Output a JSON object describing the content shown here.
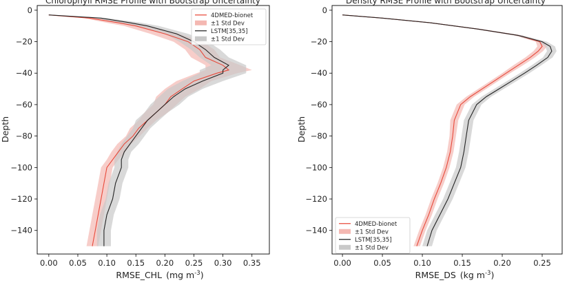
{
  "chart_data": [
    {
      "type": "line",
      "title": "Chlorophyll RMSE Profile with Bootstrap Uncertainty",
      "xlabel": "RMSE_CHL",
      "xlabel_unit_base": "(mg m",
      "xlabel_unit_exp": "-3",
      "xlabel_unit_end": ")",
      "ylabel": "Depth",
      "xlim": [
        -0.02,
        0.38
      ],
      "ylim": [
        -155,
        3
      ],
      "xticks": [
        0.0,
        0.05,
        0.1,
        0.15,
        0.2,
        0.25,
        0.3,
        0.35
      ],
      "xtick_labels": [
        "0.00",
        "0.05",
        "0.10",
        "0.15",
        "0.20",
        "0.25",
        "0.30",
        "0.35"
      ],
      "yticks": [
        0,
        -20,
        -40,
        -60,
        -80,
        -100,
        -120,
        -140
      ],
      "ytick_labels": [
        "0",
        "−20",
        "−40",
        "−60",
        "−80",
        "−100",
        "−120",
        "−140"
      ],
      "legend_position": "top-right",
      "legend": [
        "4DMED-bionet",
        "±1 Std Dev",
        "LSTM[35,35]",
        "±1 Std Dev"
      ],
      "series": [
        {
          "name": "4DMED-bionet",
          "color": "#e8493a",
          "band_color": "#f4b8b2",
          "depth": [
            -3,
            -5,
            -8,
            -10,
            -15,
            -20,
            -25,
            -30,
            -35,
            -38,
            -40,
            -45,
            -50,
            -55,
            -60,
            -65,
            -70,
            -75,
            -80,
            -85,
            -90,
            -95,
            -100,
            -110,
            -120,
            -130,
            -140,
            -150
          ],
          "values": [
            0.0,
            0.07,
            0.12,
            0.15,
            0.2,
            0.24,
            0.26,
            0.27,
            0.3,
            0.31,
            0.29,
            0.25,
            0.23,
            0.21,
            0.2,
            0.185,
            0.17,
            0.155,
            0.145,
            0.13,
            0.12,
            0.11,
            0.1,
            0.095,
            0.09,
            0.085,
            0.08,
            0.075
          ],
          "std": [
            0.0,
            0.01,
            0.02,
            0.02,
            0.025,
            0.025,
            0.025,
            0.025,
            0.03,
            0.04,
            0.035,
            0.03,
            0.03,
            0.025,
            0.02,
            0.02,
            0.015,
            0.015,
            0.012,
            0.012,
            0.012,
            0.01,
            0.01,
            0.01,
            0.01,
            0.01,
            0.01,
            0.01
          ]
        },
        {
          "name": "LSTM[35,35]",
          "color": "#222222",
          "band_color": "#c9c9c9",
          "depth": [
            -3,
            -5,
            -8,
            -10,
            -15,
            -20,
            -25,
            -30,
            -35,
            -38,
            -40,
            -45,
            -50,
            -55,
            -60,
            -65,
            -70,
            -75,
            -80,
            -85,
            -90,
            -95,
            -100,
            -110,
            -120,
            -130,
            -140,
            -150
          ],
          "values": [
            0.0,
            0.09,
            0.14,
            0.17,
            0.22,
            0.25,
            0.27,
            0.285,
            0.31,
            0.3,
            0.3,
            0.265,
            0.235,
            0.215,
            0.2,
            0.185,
            0.17,
            0.16,
            0.15,
            0.14,
            0.13,
            0.125,
            0.125,
            0.115,
            0.11,
            0.1,
            0.095,
            0.095
          ],
          "std": [
            0.0,
            0.01,
            0.02,
            0.02,
            0.02,
            0.025,
            0.025,
            0.025,
            0.03,
            0.04,
            0.04,
            0.035,
            0.03,
            0.025,
            0.025,
            0.02,
            0.02,
            0.015,
            0.015,
            0.015,
            0.012,
            0.012,
            0.012,
            0.012,
            0.012,
            0.012,
            0.012,
            0.012
          ]
        }
      ]
    },
    {
      "type": "line",
      "title": "Density RMSE Profile with Bootstrap Uncertainty",
      "xlabel": "RMSE_DS",
      "xlabel_unit_base": "(kg m",
      "xlabel_unit_exp": "-3",
      "xlabel_unit_end": ")",
      "ylabel": "Depth",
      "xlim": [
        -0.013,
        0.275
      ],
      "ylim": [
        -155,
        3
      ],
      "xticks": [
        0.0,
        0.05,
        0.1,
        0.15,
        0.2,
        0.25
      ],
      "xtick_labels": [
        "0.00",
        "0.05",
        "0.10",
        "0.15",
        "0.20",
        "0.25"
      ],
      "yticks": [
        0,
        -20,
        -40,
        -60,
        -80,
        -100,
        -120,
        -140
      ],
      "ytick_labels": [
        "0",
        "−20",
        "−40",
        "−60",
        "−80",
        "−100",
        "−120",
        "−140"
      ],
      "legend_position": "bottom-left",
      "legend": [
        "4DMED-bionet",
        "±1 Std Dev",
        "LSTM[35,35]",
        "±1 Std Dev"
      ],
      "series": [
        {
          "name": "4DMED-bionet",
          "color": "#e8493a",
          "band_color": "#f4b8b2",
          "depth": [
            -3,
            -5,
            -8,
            -12,
            -16,
            -20,
            -23,
            -26,
            -30,
            -35,
            -40,
            -45,
            -50,
            -55,
            -60,
            -70,
            -80,
            -90,
            -100,
            -110,
            -120,
            -130,
            -140,
            -150
          ],
          "values": [
            0.0,
            0.05,
            0.11,
            0.17,
            0.22,
            0.247,
            0.25,
            0.245,
            0.235,
            0.22,
            0.205,
            0.19,
            0.175,
            0.16,
            0.148,
            0.14,
            0.138,
            0.135,
            0.13,
            0.123,
            0.115,
            0.108,
            0.1,
            0.093
          ],
          "std": [
            0.0,
            0.002,
            0.003,
            0.004,
            0.005,
            0.005,
            0.006,
            0.006,
            0.006,
            0.006,
            0.005,
            0.005,
            0.005,
            0.005,
            0.005,
            0.005,
            0.004,
            0.004,
            0.004,
            0.004,
            0.004,
            0.004,
            0.004,
            0.004
          ]
        },
        {
          "name": "LSTM[35,35]",
          "color": "#222222",
          "band_color": "#c9c9c9",
          "depth": [
            -3,
            -5,
            -8,
            -12,
            -16,
            -20,
            -23,
            -26,
            -30,
            -35,
            -40,
            -45,
            -50,
            -55,
            -60,
            -70,
            -80,
            -90,
            -100,
            -110,
            -120,
            -130,
            -140,
            -150
          ],
          "values": [
            0.0,
            0.05,
            0.11,
            0.17,
            0.22,
            0.25,
            0.26,
            0.262,
            0.257,
            0.243,
            0.228,
            0.212,
            0.196,
            0.18,
            0.168,
            0.158,
            0.155,
            0.152,
            0.148,
            0.14,
            0.132,
            0.122,
            0.112,
            0.106
          ],
          "std": [
            0.0,
            0.002,
            0.003,
            0.004,
            0.005,
            0.006,
            0.006,
            0.006,
            0.006,
            0.006,
            0.006,
            0.006,
            0.006,
            0.006,
            0.006,
            0.006,
            0.006,
            0.006,
            0.006,
            0.006,
            0.006,
            0.006,
            0.006,
            0.006
          ]
        }
      ]
    }
  ]
}
